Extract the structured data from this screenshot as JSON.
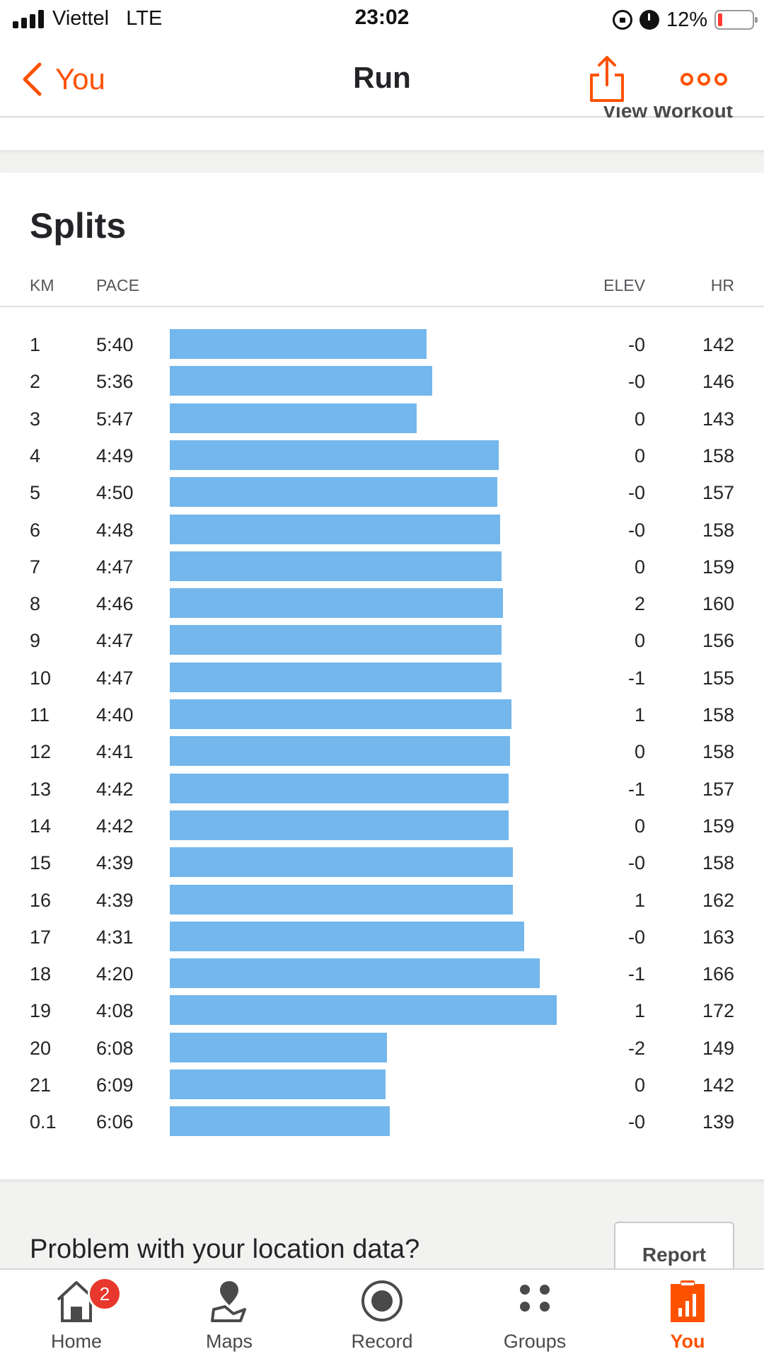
{
  "status_bar": {
    "carrier": "Viettel",
    "network": "LTE",
    "time": "23:02",
    "battery_text": "12%",
    "battery_level": 0.12,
    "battery_color": "#ff3b30"
  },
  "nav": {
    "back_label": "You",
    "title": "Run",
    "accent_color": "#fc5200",
    "share_icon": "share-icon",
    "more_icon": "more-icon"
  },
  "peek_text": "View Workout",
  "splits": {
    "title": "Splits",
    "headers": {
      "km": "KM",
      "pace": "PACE",
      "elev": "ELEV",
      "hr": "HR"
    },
    "bar_color": "#73b7ec",
    "rows": [
      {
        "km": "1",
        "pace": "5:40",
        "elev": "-0",
        "hr": "142"
      },
      {
        "km": "2",
        "pace": "5:36",
        "elev": "-0",
        "hr": "146"
      },
      {
        "km": "3",
        "pace": "5:47",
        "elev": "0",
        "hr": "143"
      },
      {
        "km": "4",
        "pace": "4:49",
        "elev": "0",
        "hr": "158"
      },
      {
        "km": "5",
        "pace": "4:50",
        "elev": "-0",
        "hr": "157"
      },
      {
        "km": "6",
        "pace": "4:48",
        "elev": "-0",
        "hr": "158"
      },
      {
        "km": "7",
        "pace": "4:47",
        "elev": "0",
        "hr": "159"
      },
      {
        "km": "8",
        "pace": "4:46",
        "elev": "2",
        "hr": "160"
      },
      {
        "km": "9",
        "pace": "4:47",
        "elev": "0",
        "hr": "156"
      },
      {
        "km": "10",
        "pace": "4:47",
        "elev": "-1",
        "hr": "155"
      },
      {
        "km": "11",
        "pace": "4:40",
        "elev": "1",
        "hr": "158"
      },
      {
        "km": "12",
        "pace": "4:41",
        "elev": "0",
        "hr": "158"
      },
      {
        "km": "13",
        "pace": "4:42",
        "elev": "-1",
        "hr": "157"
      },
      {
        "km": "14",
        "pace": "4:42",
        "elev": "0",
        "hr": "159"
      },
      {
        "km": "15",
        "pace": "4:39",
        "elev": "-0",
        "hr": "158"
      },
      {
        "km": "16",
        "pace": "4:39",
        "elev": "1",
        "hr": "162"
      },
      {
        "km": "17",
        "pace": "4:31",
        "elev": "-0",
        "hr": "163"
      },
      {
        "km": "18",
        "pace": "4:20",
        "elev": "-1",
        "hr": "166"
      },
      {
        "km": "19",
        "pace": "4:08",
        "elev": "1",
        "hr": "172"
      },
      {
        "km": "20",
        "pace": "6:08",
        "elev": "-2",
        "hr": "149"
      },
      {
        "km": "21",
        "pace": "6:09",
        "elev": "0",
        "hr": "142"
      },
      {
        "km": "0.1",
        "pace": "6:06",
        "elev": "-0",
        "hr": "139"
      }
    ]
  },
  "problem": {
    "text": "Problem with your location data?",
    "button_label": "Report"
  },
  "tabs": [
    {
      "label": "Home",
      "icon": "home-icon",
      "badge": "2",
      "active": false
    },
    {
      "label": "Maps",
      "icon": "maps-icon",
      "active": false
    },
    {
      "label": "Record",
      "icon": "record-icon",
      "active": false
    },
    {
      "label": "Groups",
      "icon": "groups-icon",
      "active": false
    },
    {
      "label": "You",
      "icon": "you-icon",
      "active": true
    }
  ]
}
